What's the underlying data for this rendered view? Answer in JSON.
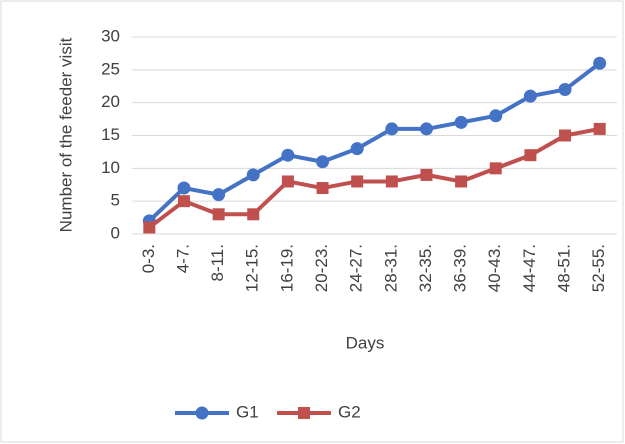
{
  "chart_data": {
    "type": "line",
    "xlabel": "Days",
    "ylabel": "Number of the feeder visit",
    "categories": [
      "0-3.",
      "4-7.",
      "8-11.",
      "12-15.",
      "16-19.",
      "20-23.",
      "24-27.",
      "28-31.",
      "32-35.",
      "36-39.",
      "40-43.",
      "44-47.",
      "48-51.",
      "52-55."
    ],
    "series": [
      {
        "name": "G1",
        "color": "#4472c4",
        "marker": "circle",
        "values": [
          2,
          7,
          6,
          9,
          12,
          11,
          13,
          16,
          16,
          17,
          18,
          21,
          22,
          26
        ]
      },
      {
        "name": "G2",
        "color": "#c0504d",
        "marker": "square",
        "values": [
          1,
          5,
          3,
          3,
          8,
          7,
          8,
          8,
          9,
          8,
          10,
          12,
          15,
          16
        ]
      }
    ],
    "ylim": [
      0,
      30
    ],
    "yticks": [
      0,
      5,
      10,
      15,
      20,
      25,
      30
    ],
    "grid": true,
    "legend": "bottom"
  }
}
